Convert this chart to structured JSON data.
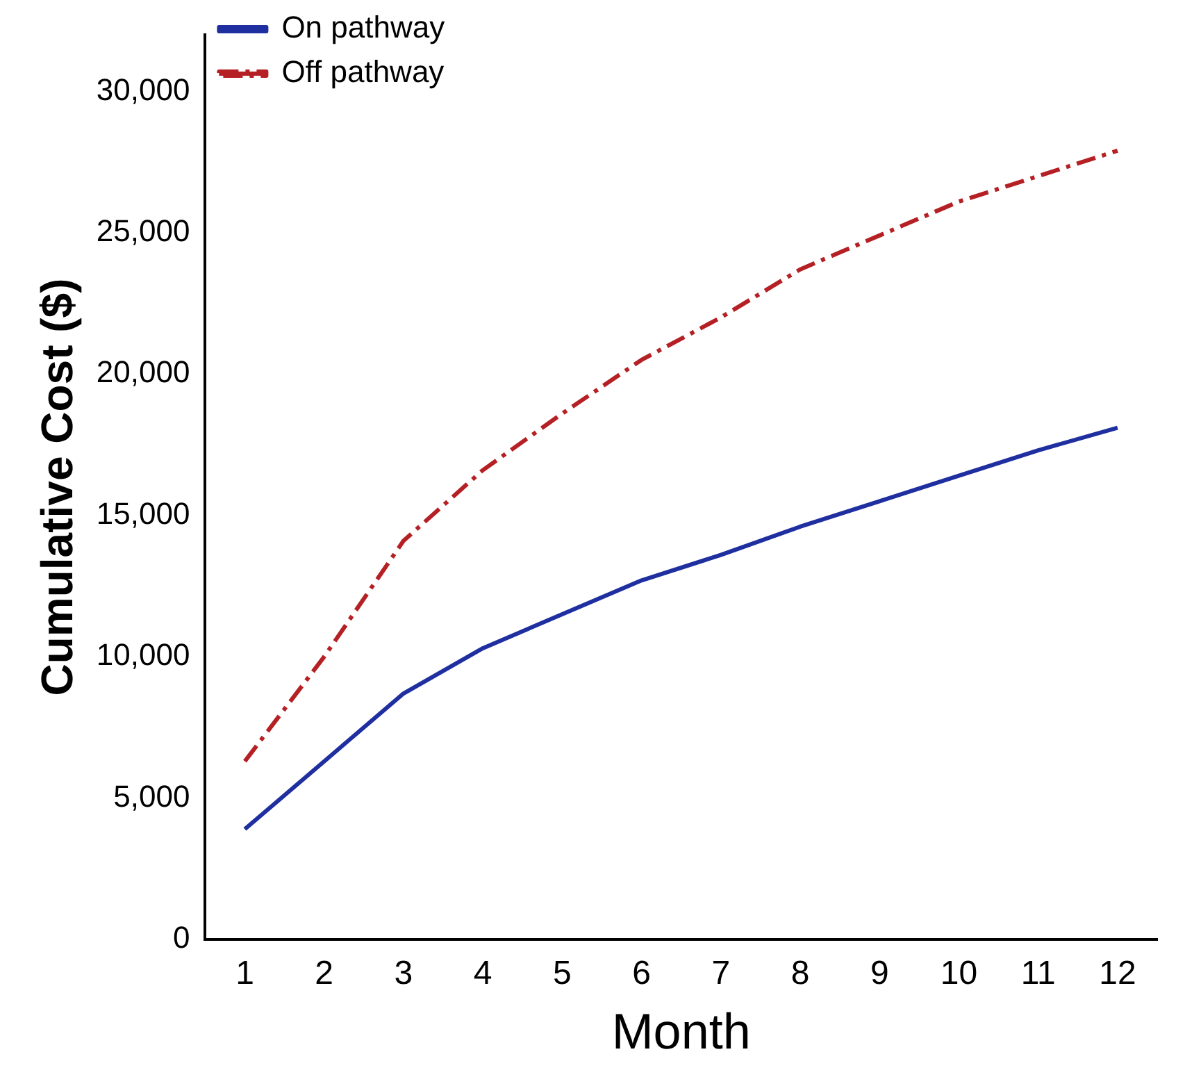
{
  "chart_data": {
    "type": "line",
    "xlabel": "Month",
    "ylabel": "Cumulative Cost ($)",
    "x": [
      1,
      2,
      3,
      4,
      5,
      6,
      7,
      8,
      9,
      10,
      11,
      12
    ],
    "series": [
      {
        "name": "On pathway",
        "color": "#1f2fa0",
        "line_style": "solid",
        "values": [
          3900,
          6300,
          8700,
          10300,
          11500,
          12700,
          13600,
          14600,
          15500,
          16400,
          17300,
          18100
        ]
      },
      {
        "name": "Off pathway",
        "color": "#b52025",
        "line_style": "dashed",
        "values": [
          6300,
          10000,
          14100,
          16600,
          18600,
          20500,
          22000,
          23700,
          24900,
          26100,
          27000,
          27900
        ]
      }
    ],
    "xlim": [
      0.5,
      12.5
    ],
    "xticks": [
      1,
      2,
      3,
      4,
      5,
      6,
      7,
      8,
      9,
      10,
      11,
      12
    ],
    "ylim": [
      0,
      32000
    ],
    "yticks": [
      {
        "value": 0,
        "label": "0"
      },
      {
        "value": 5000,
        "label": "5,000"
      },
      {
        "value": 10000,
        "label": "10,000"
      },
      {
        "value": 15000,
        "label": "15,000"
      },
      {
        "value": 20000,
        "label": "20,000"
      },
      {
        "value": 25000,
        "label": "25,000"
      },
      {
        "value": 30000,
        "label": "30,000"
      }
    ],
    "grid": false,
    "legend": "top left",
    "marker": "none"
  }
}
